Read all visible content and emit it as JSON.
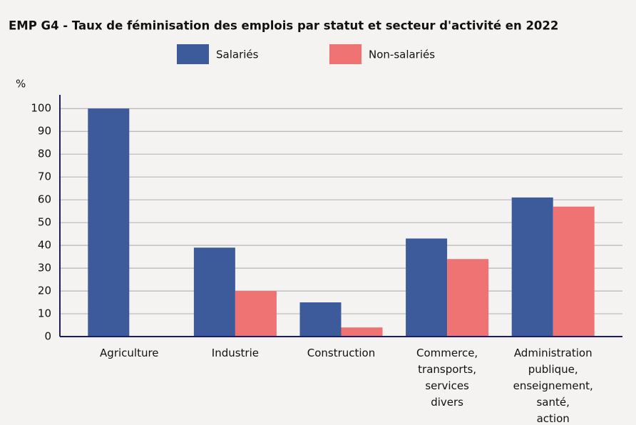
{
  "chart_data": {
    "type": "bar",
    "title": "EMP G4 - Taux de féminisation des emplois par statut et secteur d'activité en 2022",
    "y_label": "%",
    "categories": [
      [
        "Agriculture"
      ],
      [
        "Industrie"
      ],
      [
        "Construction"
      ],
      [
        "Commerce,",
        "transports,",
        "services",
        "divers"
      ],
      [
        "Administration",
        "publique,",
        "enseignement,",
        "santé,",
        "action"
      ]
    ],
    "series": [
      {
        "name": "Salariés",
        "color": "#3d5b9b",
        "values": [
          100,
          39,
          15,
          43,
          61
        ]
      },
      {
        "name": "Non-salariés",
        "color": "#f07373",
        "values": [
          null,
          20,
          4,
          34,
          57
        ]
      }
    ],
    "ylim": [
      0,
      106
    ],
    "yticks": [
      0,
      10,
      20,
      30,
      40,
      50,
      60,
      70,
      80,
      90,
      100
    ],
    "grid": true
  }
}
